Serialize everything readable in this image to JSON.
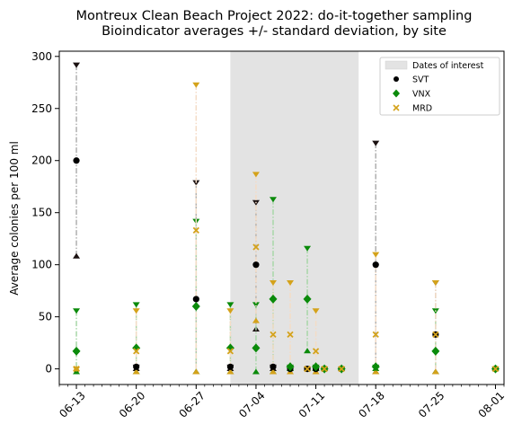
{
  "chart_data": {
    "type": "scatter",
    "title": "Montreux Clean Beach Project 2022: do-it-together sampling",
    "subtitle": "Bioindicator averages +/- standard deviation, by site",
    "ylabel": "Average colonies per 100 ml",
    "xlabel": "",
    "ylim": [
      -15,
      305
    ],
    "xlim": [
      "2022-06-11",
      "2022-08-02"
    ],
    "yticks": [
      0,
      50,
      100,
      150,
      200,
      250,
      300
    ],
    "xticks": [
      "2022-06-13",
      "2022-06-20",
      "2022-06-27",
      "2022-07-04",
      "2022-07-11",
      "2022-07-18",
      "2022-07-25",
      "2022-08-01"
    ],
    "xtick_labels": [
      "06-13",
      "06-20",
      "06-27",
      "07-04",
      "07-11",
      "07-18",
      "07-25",
      "08-01"
    ],
    "legend_position": "top-right",
    "interest_period": {
      "label": "Dates of interest",
      "start": "2022-07-01",
      "end": "2022-07-16",
      "color": "#e3e3e3"
    },
    "series": [
      {
        "name": "SVT",
        "marker": "circle",
        "color": "#000000",
        "line_color": "#b0b0b0",
        "points": [
          {
            "date": "2022-06-13",
            "mean": 200,
            "upper": 292,
            "lower": 108
          },
          {
            "date": "2022-06-20",
            "mean": 2,
            "upper": 2,
            "lower": 0
          },
          {
            "date": "2022-06-27",
            "mean": 67,
            "upper": 179,
            "lower": -3
          },
          {
            "date": "2022-07-01",
            "mean": 2,
            "upper": 2,
            "lower": 0
          },
          {
            "date": "2022-07-04",
            "mean": 100,
            "upper": 160,
            "lower": 38
          },
          {
            "date": "2022-07-06",
            "mean": 2,
            "upper": 2,
            "lower": 0
          },
          {
            "date": "2022-07-08",
            "mean": 0,
            "upper": 0,
            "lower": 0
          },
          {
            "date": "2022-07-10",
            "mean": 0,
            "upper": 0,
            "lower": 0
          },
          {
            "date": "2022-07-11",
            "mean": 0,
            "upper": 0,
            "lower": 0
          },
          {
            "date": "2022-07-12",
            "mean": 0,
            "upper": 0,
            "lower": 0
          },
          {
            "date": "2022-07-14",
            "mean": 0,
            "upper": 0,
            "lower": 0
          },
          {
            "date": "2022-07-18",
            "mean": 100,
            "upper": 217,
            "lower": -3
          },
          {
            "date": "2022-07-25",
            "mean": 33,
            "upper": 83,
            "lower": -3
          },
          {
            "date": "2022-08-01",
            "mean": 0,
            "upper": 0,
            "lower": 0
          }
        ]
      },
      {
        "name": "VNX",
        "marker": "diamond",
        "color": "#0a8a0a",
        "line_color": "#a8d7a8",
        "points": [
          {
            "date": "2022-06-13",
            "mean": 17,
            "upper": 56,
            "lower": -3
          },
          {
            "date": "2022-06-20",
            "mean": 20,
            "upper": 62,
            "lower": -3
          },
          {
            "date": "2022-06-27",
            "mean": 60,
            "upper": 142,
            "lower": -3
          },
          {
            "date": "2022-07-01",
            "mean": 20,
            "upper": 62,
            "lower": -3
          },
          {
            "date": "2022-07-04",
            "mean": 20,
            "upper": 62,
            "lower": -3
          },
          {
            "date": "2022-07-06",
            "mean": 67,
            "upper": 163,
            "lower": -3
          },
          {
            "date": "2022-07-08",
            "mean": 2,
            "upper": 2,
            "lower": 0
          },
          {
            "date": "2022-07-10",
            "mean": 67,
            "upper": 116,
            "lower": 17
          },
          {
            "date": "2022-07-11",
            "mean": 2,
            "upper": 2,
            "lower": 0
          },
          {
            "date": "2022-07-12",
            "mean": 0,
            "upper": 0,
            "lower": 0
          },
          {
            "date": "2022-07-14",
            "mean": 0,
            "upper": 0,
            "lower": 0
          },
          {
            "date": "2022-07-18",
            "mean": 2,
            "upper": 2,
            "lower": 0
          },
          {
            "date": "2022-07-25",
            "mean": 17,
            "upper": 56,
            "lower": -3
          },
          {
            "date": "2022-08-01",
            "mean": 0,
            "upper": 0,
            "lower": 0
          }
        ]
      },
      {
        "name": "MRD",
        "marker": "x",
        "color": "#d4a21a",
        "line_color": "#f4dcc6",
        "points": [
          {
            "date": "2022-06-13",
            "mean": 0,
            "upper": 0,
            "lower": 0
          },
          {
            "date": "2022-06-20",
            "mean": 17,
            "upper": 56,
            "lower": -3
          },
          {
            "date": "2022-06-27",
            "mean": 133,
            "upper": 273,
            "lower": -3
          },
          {
            "date": "2022-07-01",
            "mean": 17,
            "upper": 56,
            "lower": -3
          },
          {
            "date": "2022-07-04",
            "mean": 117,
            "upper": 187,
            "lower": 46
          },
          {
            "date": "2022-07-06",
            "mean": 33,
            "upper": 83,
            "lower": -3
          },
          {
            "date": "2022-07-08",
            "mean": 33,
            "upper": 83,
            "lower": -3
          },
          {
            "date": "2022-07-10",
            "mean": 0,
            "upper": 0,
            "lower": 0
          },
          {
            "date": "2022-07-11",
            "mean": 17,
            "upper": 56,
            "lower": -3
          },
          {
            "date": "2022-07-12",
            "mean": 0,
            "upper": 0,
            "lower": 0
          },
          {
            "date": "2022-07-14",
            "mean": 0,
            "upper": 0,
            "lower": 0
          },
          {
            "date": "2022-07-18",
            "mean": 33,
            "upper": 110,
            "lower": -3
          },
          {
            "date": "2022-07-25",
            "mean": 33,
            "upper": 83,
            "lower": -3
          },
          {
            "date": "2022-08-01",
            "mean": 0,
            "upper": 0,
            "lower": 0
          }
        ]
      }
    ]
  }
}
